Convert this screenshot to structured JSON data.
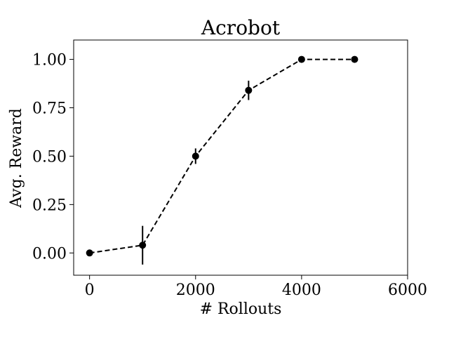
{
  "chart_data": {
    "type": "line",
    "title": "Acrobot",
    "xlabel": "# Rollouts",
    "ylabel": "Avg. Reward",
    "xlim": [
      -300,
      6000
    ],
    "ylim": [
      -0.115,
      1.1
    ],
    "xticks": [
      0,
      2000,
      4000,
      6000
    ],
    "xtick_labels": [
      "0",
      "2000",
      "4000",
      "6000"
    ],
    "yticks": [
      0.0,
      0.25,
      0.5,
      0.75,
      1.0
    ],
    "ytick_labels": [
      "0.00",
      "0.25",
      "0.50",
      "0.75",
      "1.00"
    ],
    "grid": false,
    "line_style": "dashed",
    "marker": "circle",
    "color": "#000000",
    "series": [
      {
        "x": [
          0,
          1000,
          2000,
          3000,
          4000,
          5000
        ],
        "y": [
          0.0,
          0.04,
          0.5,
          0.84,
          1.0,
          1.0
        ],
        "yerr": [
          0.0,
          0.1,
          0.04,
          0.05,
          0.0,
          0.0
        ]
      }
    ]
  }
}
